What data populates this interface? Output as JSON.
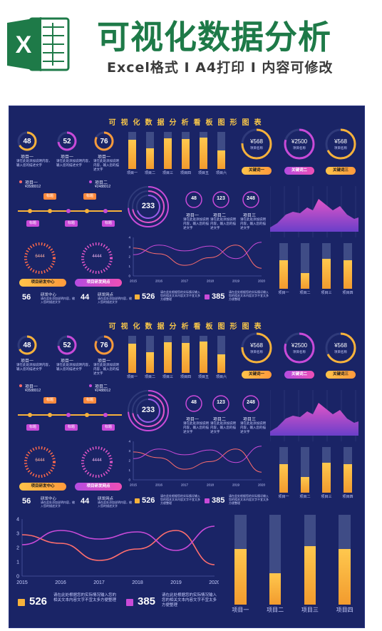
{
  "header": {
    "logo_letter": "X",
    "title": "可视化数据分析",
    "subtitle": "Excel格式 I A4打印 I 内容可修改"
  },
  "colors": {
    "board_bg": "#1a2466",
    "yellow": "#f7b23b",
    "magenta": "#c94ad8",
    "brand_green": "#1e7a48"
  },
  "dashboard": {
    "title": "可视化数据分析看板图形图表",
    "rings": [
      {
        "value": "48",
        "label": "项目一"
      },
      {
        "value": "52",
        "label": "项目一"
      },
      {
        "value": "76",
        "label": "项目一"
      }
    ],
    "ring_desc": "请在此处添加说明内容，输入您的描述文字",
    "top_bars": {
      "categories": [
        "项目一",
        "项目二",
        "项目三",
        "项目四",
        "项目五",
        "项目六"
      ],
      "values": [
        0.78,
        0.55,
        0.82,
        0.8,
        0.85,
        0.5
      ]
    },
    "money": [
      {
        "value": "¥568",
        "label": "项目名称",
        "pill": "关键词一"
      },
      {
        "value": "¥2500",
        "label": "项目名称",
        "pill": "关键词二"
      },
      {
        "value": "¥568",
        "label": "项目名称",
        "pill": "关键词三"
      }
    ],
    "timeline": {
      "item1": "项目一",
      "num1": "¥3588012",
      "item2": "项目二",
      "num2": "¥2488012",
      "tag": "标题"
    },
    "center_ring": "233",
    "small_rings": [
      {
        "value": "48",
        "label": "项目一"
      },
      {
        "value": "123",
        "label": "项目二"
      },
      {
        "value": "248",
        "label": "项目三"
      }
    ],
    "dial_labels": [
      "6444",
      "4444"
    ],
    "pills_bottom": [
      "项目研发中心",
      "项目研发网点"
    ],
    "stats_left": [
      {
        "value": "56",
        "label": "研发中心"
      },
      {
        "value": "44",
        "label": "研发网点"
      }
    ],
    "stats_right": [
      {
        "value": "526",
        "desc": "请在此处根据您的实际情况输入您的相关文本内容文字不宜太多方便整理"
      },
      {
        "value": "385",
        "desc": "请在此处根据您的实际情况输入您的相关文本内容文字不宜太多方便整理"
      }
    ]
  },
  "chart_data": [
    {
      "type": "line",
      "x": [
        "2015",
        "2016",
        "2017",
        "2018",
        "2019",
        "2020"
      ],
      "ylim": [
        0,
        4
      ],
      "yticks": [
        "0",
        "1",
        "2",
        "3",
        "4"
      ],
      "series": [
        {
          "values": [
            2.9,
            2.3,
            1.1,
            1.9,
            3.2,
            0.8
          ]
        },
        {
          "values": [
            2.2,
            3.2,
            2.6,
            3.1,
            1.8,
            3.5
          ]
        }
      ]
    },
    {
      "type": "bar",
      "categories": [
        "项目一",
        "项目二",
        "项目三",
        "项目四"
      ],
      "values": [
        0.62,
        0.35,
        0.65,
        0.62
      ]
    }
  ],
  "lower": {
    "stats": [
      {
        "value": "526",
        "desc": "请在此处根据您的实际情况输入您的相关文本内容文字不宜太多方便整理"
      },
      {
        "value": "385",
        "desc": "请在此处根据您的实际情况输入您的相关文本内容文字不宜太多方便整理"
      }
    ]
  }
}
